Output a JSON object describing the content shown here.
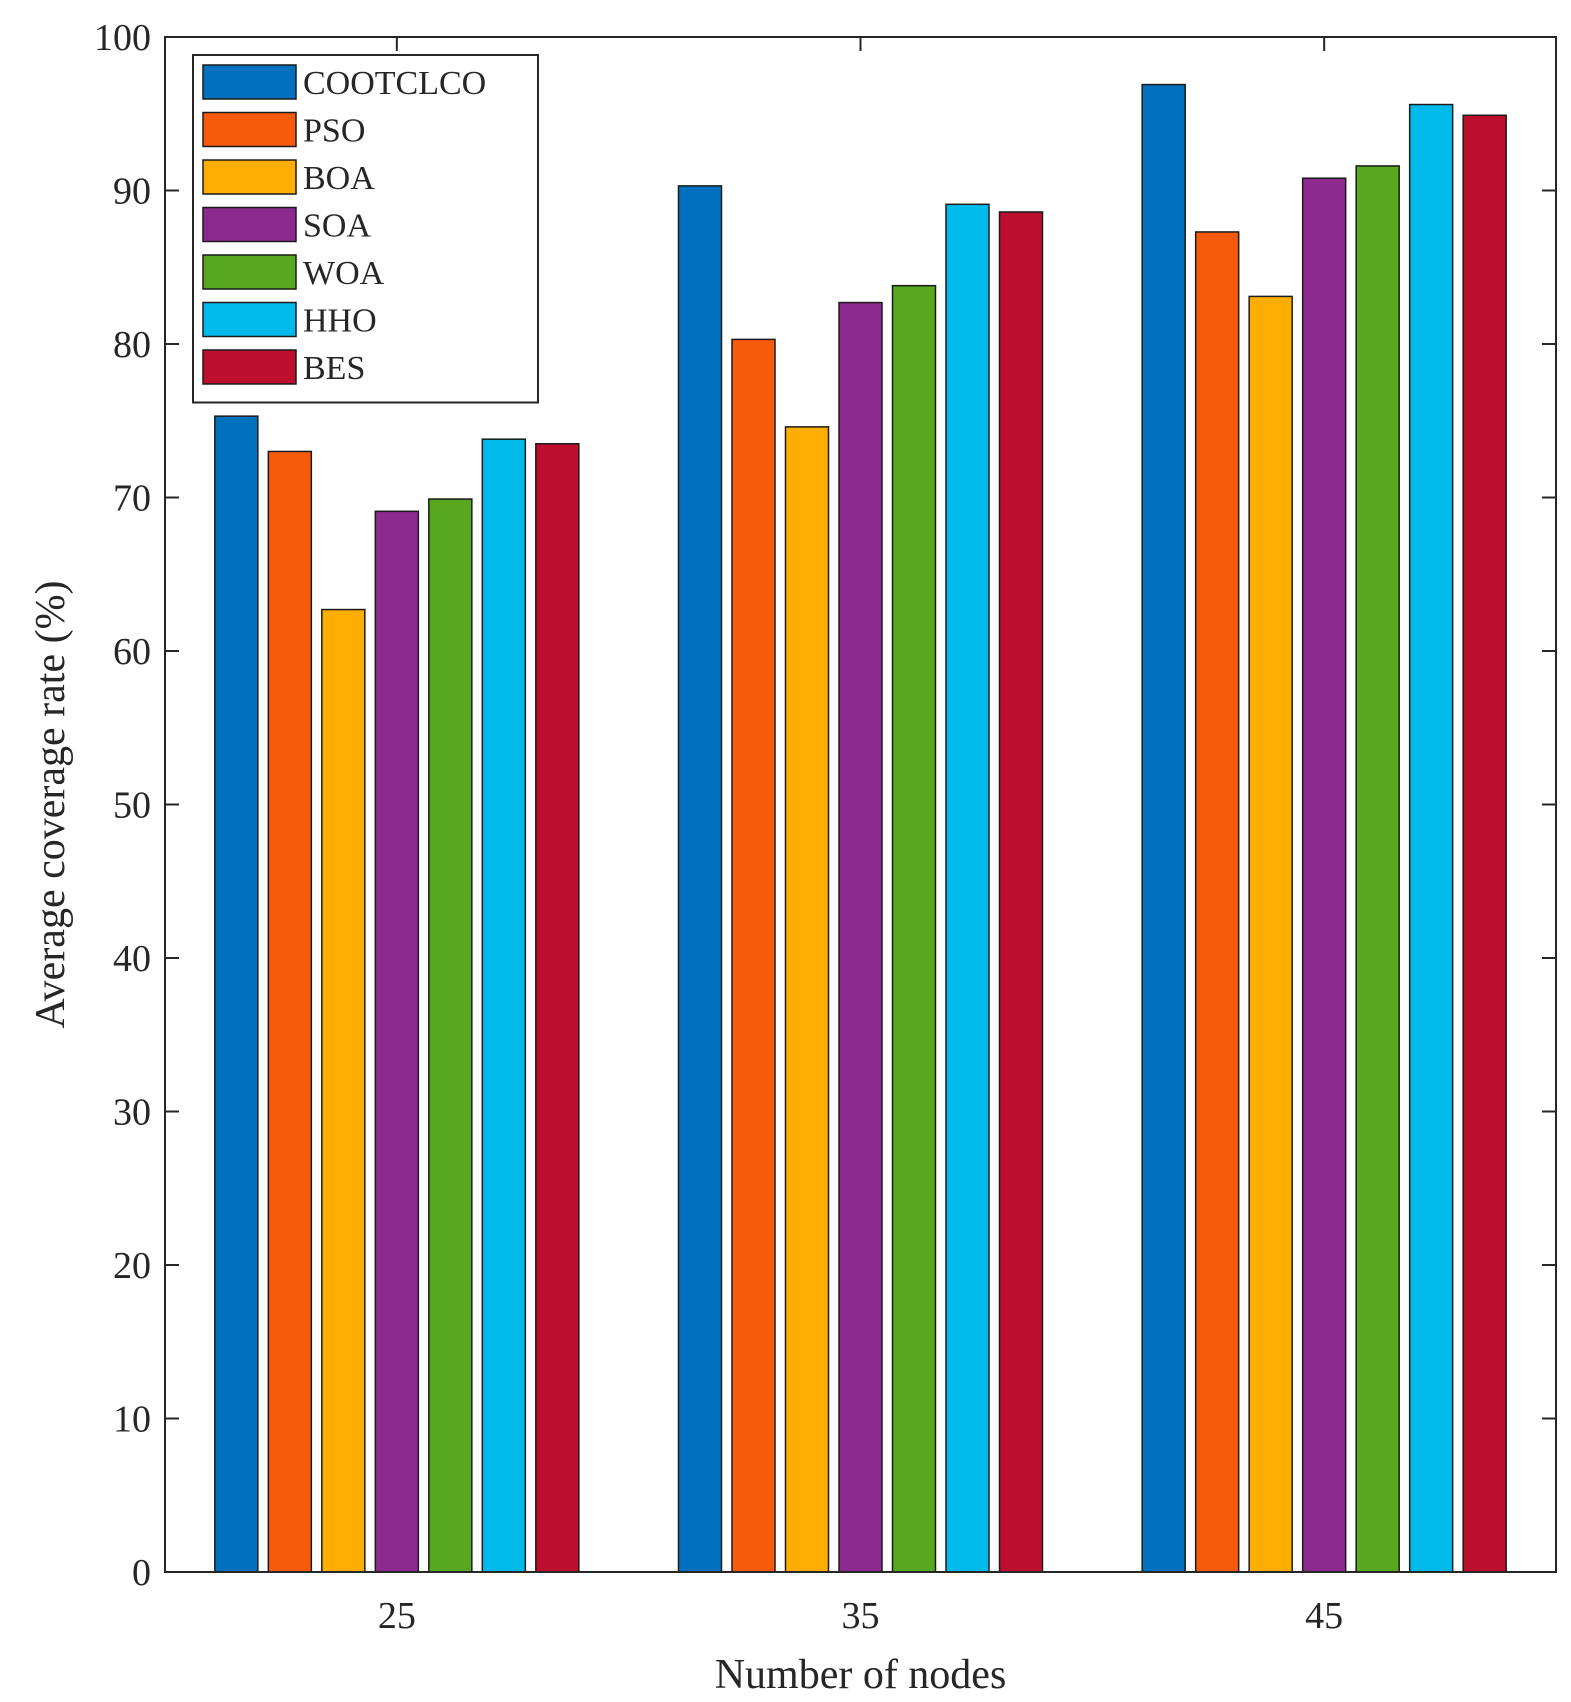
{
  "chart_data": {
    "type": "bar",
    "title": "",
    "xlabel": "Number of nodes",
    "ylabel": "Average coverage rate (%)",
    "ylim": [
      0,
      100
    ],
    "yticks": [
      "0",
      "10",
      "20",
      "30",
      "40",
      "50",
      "60",
      "70",
      "80",
      "90",
      "100"
    ],
    "categories": [
      "25",
      "35",
      "45"
    ],
    "legend_position": "top-left",
    "series": [
      {
        "name": "COOTCLCO",
        "color": "#0072BD",
        "values": [
          75.3,
          90.3,
          96.9
        ]
      },
      {
        "name": "PSO",
        "color": "#F85A0C",
        "values": [
          73.0,
          80.3,
          87.3
        ]
      },
      {
        "name": "BOA",
        "color": "#FFAE00",
        "values": [
          62.7,
          74.6,
          83.1
        ]
      },
      {
        "name": "SOA",
        "color": "#8D2A8E",
        "values": [
          69.1,
          82.7,
          90.8
        ]
      },
      {
        "name": "WOA",
        "color": "#57A81E",
        "values": [
          69.9,
          83.8,
          91.6
        ]
      },
      {
        "name": "HHO",
        "color": "#00BAEC",
        "values": [
          73.8,
          89.1,
          95.6
        ]
      },
      {
        "name": "BES",
        "color": "#BE0E2E",
        "values": [
          73.5,
          88.6,
          94.9
        ]
      }
    ]
  }
}
